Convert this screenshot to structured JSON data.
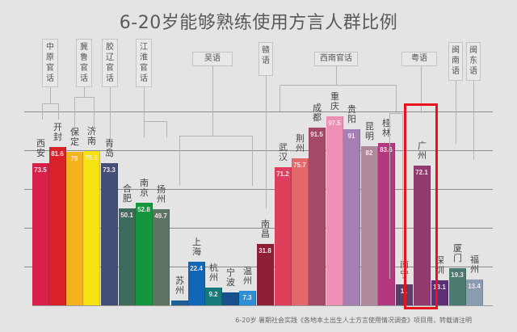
{
  "title": "6-20岁能够熟练使用方言人群比例",
  "source": "6-20岁 暑期社会实践《各地本土出生人士方言使用情况调查》项目用，转载请注明",
  "highlight": {
    "target": "广州",
    "color": "#e8131b"
  },
  "chart_data": {
    "type": "bar",
    "title": "6-20岁能够熟练使用方言人群比例",
    "xlabel": "",
    "ylabel": "",
    "ylim": [
      0,
      100
    ],
    "grid": true,
    "categories": [
      "西安",
      "开封",
      "保定",
      "济南",
      "青岛",
      "合肥",
      "南京",
      "扬州",
      "苏州",
      "上海",
      "杭州",
      "宁波",
      "温州",
      "南昌",
      "武汉",
      "荆州",
      "成都",
      "重庆",
      "贵阳",
      "昆明",
      "桂林",
      "南宁",
      "广州",
      "深圳",
      "厦门",
      "福州"
    ],
    "values": [
      73.5,
      81.6,
      79,
      79.5,
      73.3,
      50.1,
      52.8,
      49.7,
      2.5,
      22.4,
      9.2,
      6.5,
      7.3,
      31.8,
      71.2,
      75.7,
      91.5,
      97.5,
      91,
      82,
      83.6,
      11,
      72.1,
      13.1,
      19.3,
      13.4
    ],
    "value_labels": [
      "73.5",
      "81.6",
      "79",
      "79.5",
      "73.3",
      "50.1",
      "52.8",
      "49.7",
      "",
      "22.4",
      "9.2",
      "",
      "7.3",
      "31.8",
      "71.2",
      "75.7",
      "91.5",
      "97.5",
      "91",
      "82",
      "83.6",
      "11",
      "72.1",
      "13.1",
      "19.3",
      "13.4"
    ],
    "colors": [
      "#d7204a",
      "#d82128",
      "#f4b41d",
      "#f4e311",
      "#434f79",
      "#3d6b5c",
      "#14963f",
      "#5d7363",
      "#1d5f94",
      "#1166b6",
      "#157979",
      "#17508b",
      "#2e8ed3",
      "#8e1d36",
      "#dd3f5c",
      "#e4686a",
      "#a44a67",
      "#ee8fb4",
      "#a37fb3",
      "#b08a9c",
      "#b3387d",
      "#5a3f68",
      "#913a6e",
      "#5c2f74",
      "#4a7a70",
      "#8a9db0"
    ],
    "groups": [
      {
        "name": "中原官话",
        "members": [
          "西安",
          "开封"
        ]
      },
      {
        "name": "冀鲁官话",
        "members": [
          "保定",
          "济南"
        ]
      },
      {
        "name": "胶辽官话",
        "members": [
          "青岛"
        ]
      },
      {
        "name": "江淮官话",
        "members": [
          "合肥",
          "南京",
          "扬州"
        ]
      },
      {
        "name": "吴语",
        "members": [
          "苏州",
          "上海",
          "杭州",
          "宁波",
          "温州"
        ]
      },
      {
        "name": "赣语",
        "members": [
          "南昌"
        ]
      },
      {
        "name": "西南官话",
        "members": [
          "武汉",
          "荆州",
          "成都",
          "重庆",
          "贵阳",
          "昆明",
          "桂林"
        ]
      },
      {
        "name": "粤语",
        "members": [
          "南宁",
          "广州"
        ]
      },
      {
        "name": "闽南语",
        "members": [
          "厦门"
        ]
      },
      {
        "name": "闽东语",
        "members": [
          "福州"
        ]
      }
    ]
  }
}
